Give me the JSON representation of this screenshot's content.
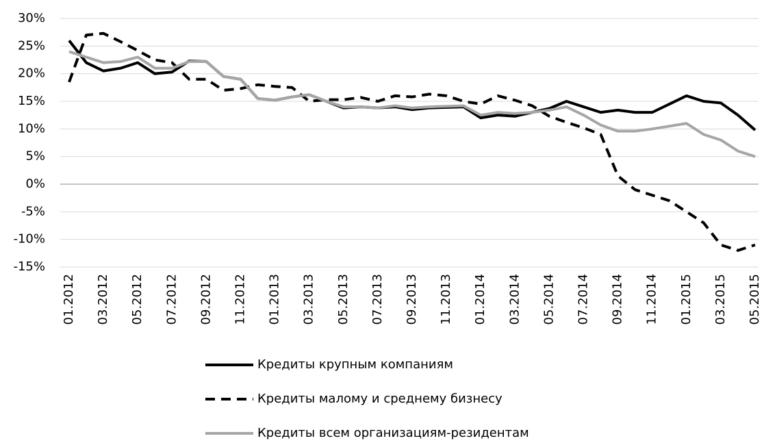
{
  "chart_data": {
    "type": "line",
    "categories": [
      "01.2012",
      null,
      "03.2012",
      null,
      "05.2012",
      null,
      "07.2012",
      null,
      "09.2012",
      null,
      "11.2012",
      null,
      "01.2013",
      null,
      "03.2013",
      null,
      "05.2013",
      null,
      "07.2013",
      null,
      "09.2013",
      null,
      "11.2013",
      null,
      "01.2014",
      null,
      "03.2014",
      null,
      "05.2014",
      null,
      "07.2014",
      null,
      "09.2014",
      null,
      "11.2014",
      null,
      "01.2015",
      null,
      "03.2015",
      null,
      "05.2015"
    ],
    "series": [
      {
        "name": "Кредиты крупным компаниям",
        "color": "#000000",
        "line_style": "solid",
        "values": [
          26,
          22,
          20.5,
          21,
          22,
          20,
          20.3,
          22.3,
          22.2,
          19.5,
          19,
          15.5,
          15.2,
          15.8,
          16.2,
          15,
          13.8,
          14,
          13.8,
          14,
          13.5,
          13.8,
          13.9,
          14,
          12,
          12.5,
          12.3,
          13,
          13.7,
          15,
          14,
          13,
          13.4,
          13,
          13,
          14.5,
          16,
          15,
          14.7,
          12.5,
          9.8
        ]
      },
      {
        "name": "Кредиты малому и среднему бизнесу",
        "color": "#000000",
        "line_style": "dashed",
        "values": [
          18.5,
          27,
          27.3,
          25.8,
          24.2,
          22.5,
          22,
          19,
          19,
          17,
          17.3,
          18,
          17.7,
          17.5,
          15,
          15.3,
          15.3,
          15.7,
          15,
          16,
          15.8,
          16.3,
          16,
          15,
          14.5,
          16,
          15.2,
          14.2,
          12.3,
          11.2,
          10.2,
          9,
          1.5,
          -1,
          -2,
          -3,
          -5,
          -7,
          -11,
          -12,
          -11
        ]
      },
      {
        "name": "Кредиты всем организациям-резидентам",
        "color": "#a6a6a6",
        "line_style": "solid",
        "values": [
          24,
          23,
          22,
          22.2,
          23,
          21,
          21,
          22.2,
          22.2,
          19.5,
          19,
          15.5,
          15.2,
          15.8,
          16.2,
          15,
          14,
          14,
          13.8,
          14.2,
          13.8,
          14,
          14.1,
          14.2,
          12.5,
          13,
          12.8,
          13,
          13.4,
          14,
          12.5,
          10.7,
          9.6,
          9.6,
          10,
          10.5,
          11,
          9,
          8,
          6,
          5
        ]
      }
    ],
    "ylim": [
      -15,
      30
    ],
    "yticks": [
      {
        "value": -15,
        "label": "-15%"
      },
      {
        "value": -10,
        "label": "-10%"
      },
      {
        "value": -5,
        "label": "-5%"
      },
      {
        "value": 0,
        "label": "0%"
      },
      {
        "value": 5,
        "label": "5%"
      },
      {
        "value": 10,
        "label": "10%"
      },
      {
        "value": 15,
        "label": "15%"
      },
      {
        "value": 20,
        "label": "20%"
      },
      {
        "value": 25,
        "label": "25%"
      },
      {
        "value": 30,
        "label": "30%"
      }
    ],
    "grid": true,
    "legend": "bottom"
  }
}
